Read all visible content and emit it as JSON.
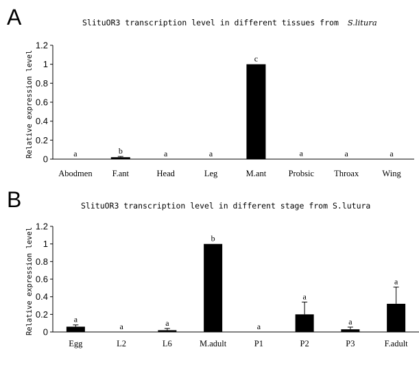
{
  "chart_data": [
    {
      "type": "bar",
      "panel": "A",
      "title": "SlituOR3 transcription level in different tissues from",
      "title_italic": "S.litura",
      "ylabel": "Relative expression level",
      "xlabel": "",
      "ylim": [
        0,
        1.2
      ],
      "yticks": [
        "0",
        "0.2",
        "0.4",
        "0.6",
        "0.8",
        "1",
        "1.2"
      ],
      "categories": [
        "Abodmen",
        "F.ant",
        "Head",
        "Leg",
        "M.ant",
        "Probsic",
        "Throax",
        "Wing"
      ],
      "values": [
        0.0,
        0.02,
        0.0,
        0.0,
        1.0,
        0.003,
        0.0,
        0.0
      ],
      "errors": [
        0.0,
        0.008,
        0.0,
        0.0,
        0.0,
        0.0,
        0.0,
        0.0
      ],
      "significance": [
        "a",
        "b",
        "a",
        "a",
        "c",
        "a",
        "a",
        "a"
      ],
      "bar_color": "#000000"
    },
    {
      "type": "bar",
      "panel": "B",
      "title": "SlituOR3 transcription level in different stage from S.lutura",
      "ylabel": "Relative expression level",
      "xlabel": "",
      "ylim": [
        0,
        1.2
      ],
      "yticks": [
        "0",
        "0.2",
        "0.4",
        "0.6",
        "0.8",
        "1",
        "1.2"
      ],
      "categories": [
        "Egg",
        "L2",
        "L6",
        "M.adult",
        "P1",
        "P2",
        "P3",
        "F.adult"
      ],
      "values": [
        0.06,
        0.0,
        0.02,
        1.0,
        0.0,
        0.2,
        0.03,
        0.32
      ],
      "errors": [
        0.02,
        0.0,
        0.02,
        0.0,
        0.0,
        0.14,
        0.025,
        0.19
      ],
      "significance": [
        "a",
        "a",
        "a",
        "b",
        "a",
        "a",
        "a",
        "a"
      ],
      "bar_color": "#000000"
    }
  ]
}
